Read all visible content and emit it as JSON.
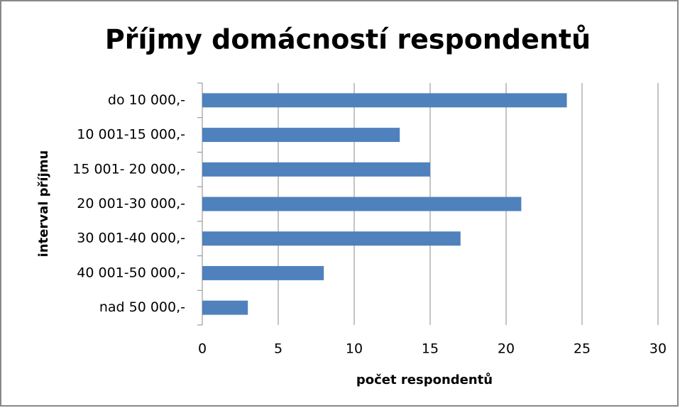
{
  "chart_data": {
    "type": "bar",
    "orientation": "horizontal",
    "title": "Příjmy domácností respondentů",
    "xlabel": "počet respondentů",
    "ylabel": "interval příjmu",
    "categories": [
      "do 10 000,-",
      "10 001-15 000,-",
      "15 001- 20 000,-",
      "20 001-30 000,-",
      "30 001-40 000,-",
      "40 001-50 000,-",
      "nad 50 000,-"
    ],
    "values": [
      24,
      13,
      15,
      21,
      17,
      8,
      3
    ],
    "color": "#4f81bd",
    "xlim": [
      0,
      30
    ],
    "xticks": [
      0,
      5,
      10,
      15,
      20,
      25,
      30
    ],
    "grid": true
  }
}
